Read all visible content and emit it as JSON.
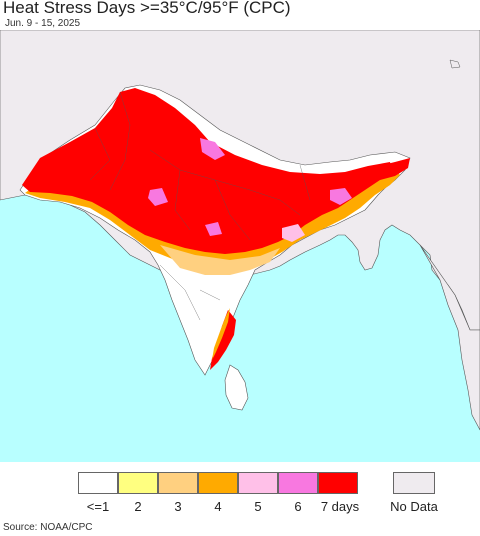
{
  "title": "Heat Stress Days >=35°C/95°F (CPC)",
  "subtitle": "Jun. 9 - 15, 2025",
  "source": "Source: NOAA/CPC",
  "legend": {
    "items": [
      {
        "label": "<=1",
        "color": "#ffffff"
      },
      {
        "label": "2",
        "color": "#ffff80"
      },
      {
        "label": "3",
        "color": "#ffd080"
      },
      {
        "label": "4",
        "color": "#ffaa00"
      },
      {
        "label": "5",
        "color": "#ffc0e8"
      },
      {
        "label": "6",
        "color": "#f878e0"
      },
      {
        "label": "7 days",
        "color": "#ff0000"
      }
    ],
    "no_data": {
      "label": "No Data",
      "color": "#efebef"
    }
  },
  "colors": {
    "ocean": "#b8ffff",
    "land_no_data": "#efebef",
    "land_low": "#ffffff",
    "boundary": "#444444"
  }
}
